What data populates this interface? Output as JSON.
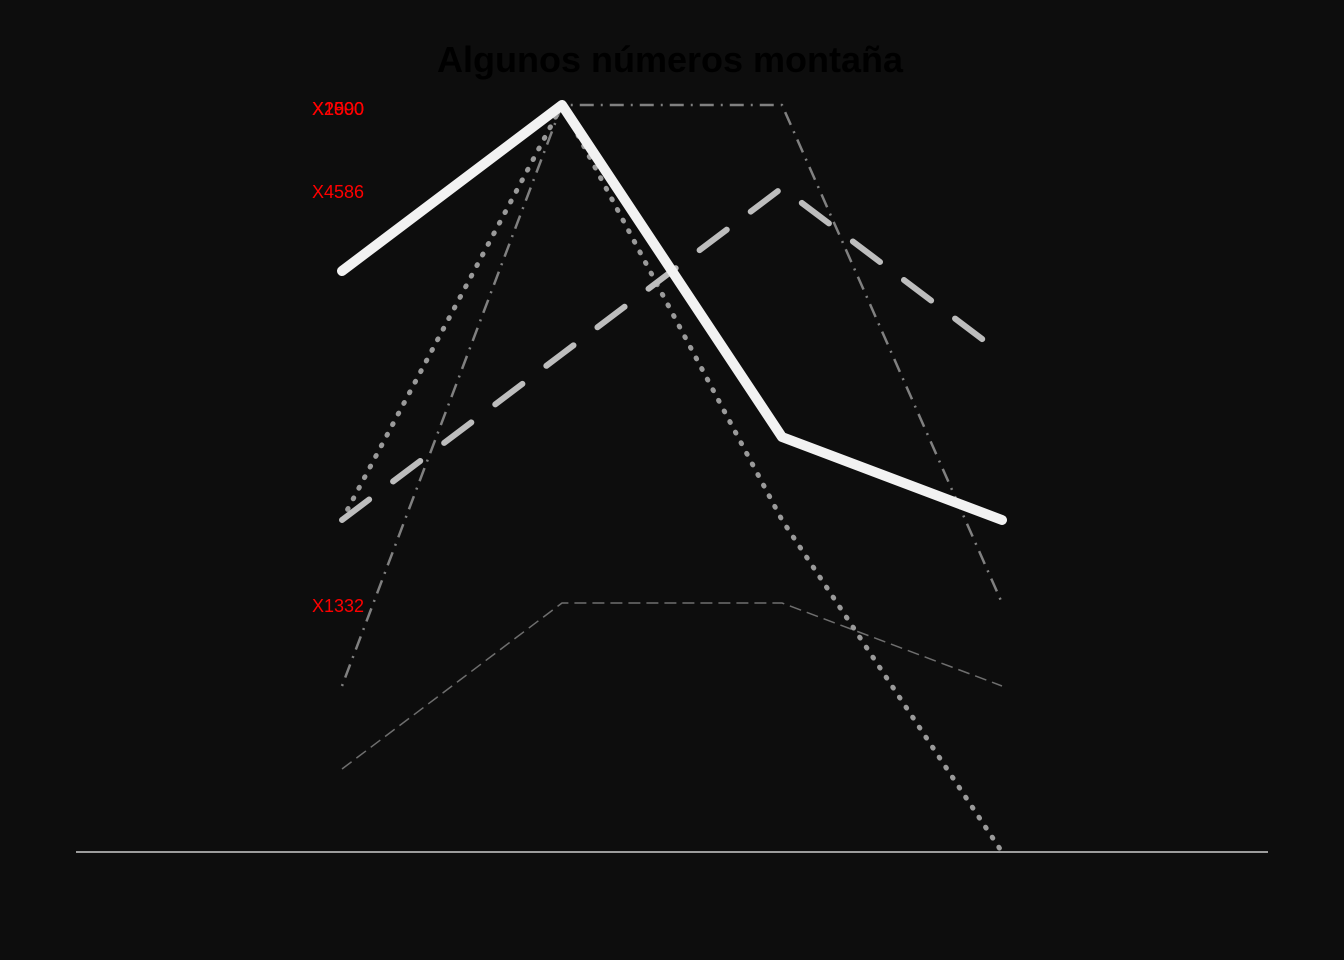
{
  "chart_data": {
    "type": "line",
    "title": "Algunos números montaña",
    "xlabel": "",
    "ylabel": "",
    "grid": false,
    "legend": "none",
    "x": [
      1,
      2,
      3,
      4
    ],
    "ylim": [
      0,
      9
    ],
    "series": [
      {
        "name": "X4586",
        "values": [
          7,
          9,
          5,
          4
        ],
        "color": "#f2f2f2",
        "dash": "solid"
      },
      {
        "name": "X2990",
        "values": [
          4,
          9,
          4,
          0
        ],
        "color": "#9a9a9a",
        "dash": "dotted"
      },
      {
        "name": "X1000",
        "values": [
          4,
          6,
          8,
          6
        ],
        "color": "#bdbdbd",
        "dash": "longdash"
      },
      {
        "name": "X2500",
        "values": [
          2,
          9,
          9,
          3
        ],
        "color": "#808080",
        "dash": "dotdash"
      },
      {
        "name": "X1332",
        "values": [
          1,
          3,
          3,
          2
        ],
        "color": "#6e6e6e",
        "dash": "dashed"
      }
    ],
    "series_label_texts": [
      "X2990",
      "X1000",
      "X2500",
      "X4586",
      "X1332"
    ],
    "axis_line_color": "#cccccc",
    "label_color": "#ff0000"
  }
}
